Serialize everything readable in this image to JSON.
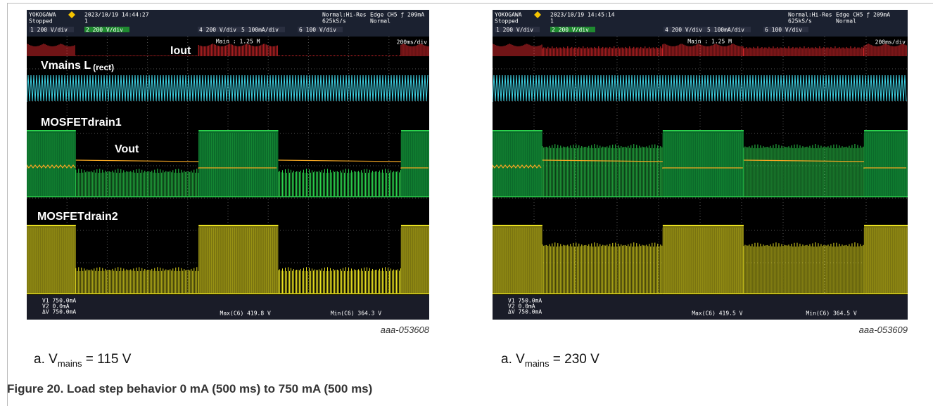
{
  "figure": {
    "caption": "Figure 20.  Load step behavior 0 mA (500 ms) to 750 mA (500 ms)"
  },
  "panels": [
    {
      "scope": {
        "brand": "YOKOGAWA",
        "datetime": "2023/10/19 14:44:27",
        "state": "Stopped",
        "count": "1",
        "acquisition": "Normal:Hi-Res",
        "rate": "625kS/s",
        "trigger": "Edge CH5 ƒ 209mA",
        "mode": "Normal",
        "channels": [
          "1  200 V/div",
          "2  200 V/div",
          "4  200 V/div",
          "5  100mA/div",
          "6  100 V/div"
        ],
        "zoom": "Main : 1.25 M",
        "timebase": "200ms/div",
        "cursors": [
          "V1  750.0mA",
          "V2  0.0mA",
          "ΔV  750.0mA"
        ],
        "max": "Max(C6)  419.8 V",
        "min": "Min(C6)  364.3 V"
      },
      "traces": {
        "iout": "Iout",
        "vmains": "Vmains L",
        "vmains_sub": "(rect)",
        "drain1": "MOSFETdrain1",
        "vout": "Vout",
        "drain2": "MOSFETdrain2"
      },
      "id": "aaa-053608",
      "subcaption": {
        "prefix": "a. V",
        "subscript": "mains",
        "suffix": " = 115 V"
      }
    },
    {
      "scope": {
        "brand": "YOKOGAWA",
        "datetime": "2023/10/19 14:45:14",
        "state": "Stopped",
        "count": "1",
        "acquisition": "Normal:Hi-Res",
        "rate": "625kS/s",
        "trigger": "Edge CH5 ƒ 209mA",
        "mode": "Normal",
        "channels": [
          "1  200 V/div",
          "2  200 V/div",
          "4  200 V/div",
          "5  100mA/div",
          "6  100 V/div"
        ],
        "zoom": "Main : 1.25 M",
        "timebase": "200ms/div",
        "cursors": [
          "V1  750.0mA",
          "V2  0.0mA",
          "ΔV  750.0mA"
        ],
        "max": "Max(C6)  419.5 V",
        "min": "Min(C6)  364.5 V"
      },
      "id": "aaa-053609",
      "subcaption": {
        "prefix": "a. V",
        "subscript": "mains",
        "suffix": " = 230 V"
      }
    }
  ]
}
